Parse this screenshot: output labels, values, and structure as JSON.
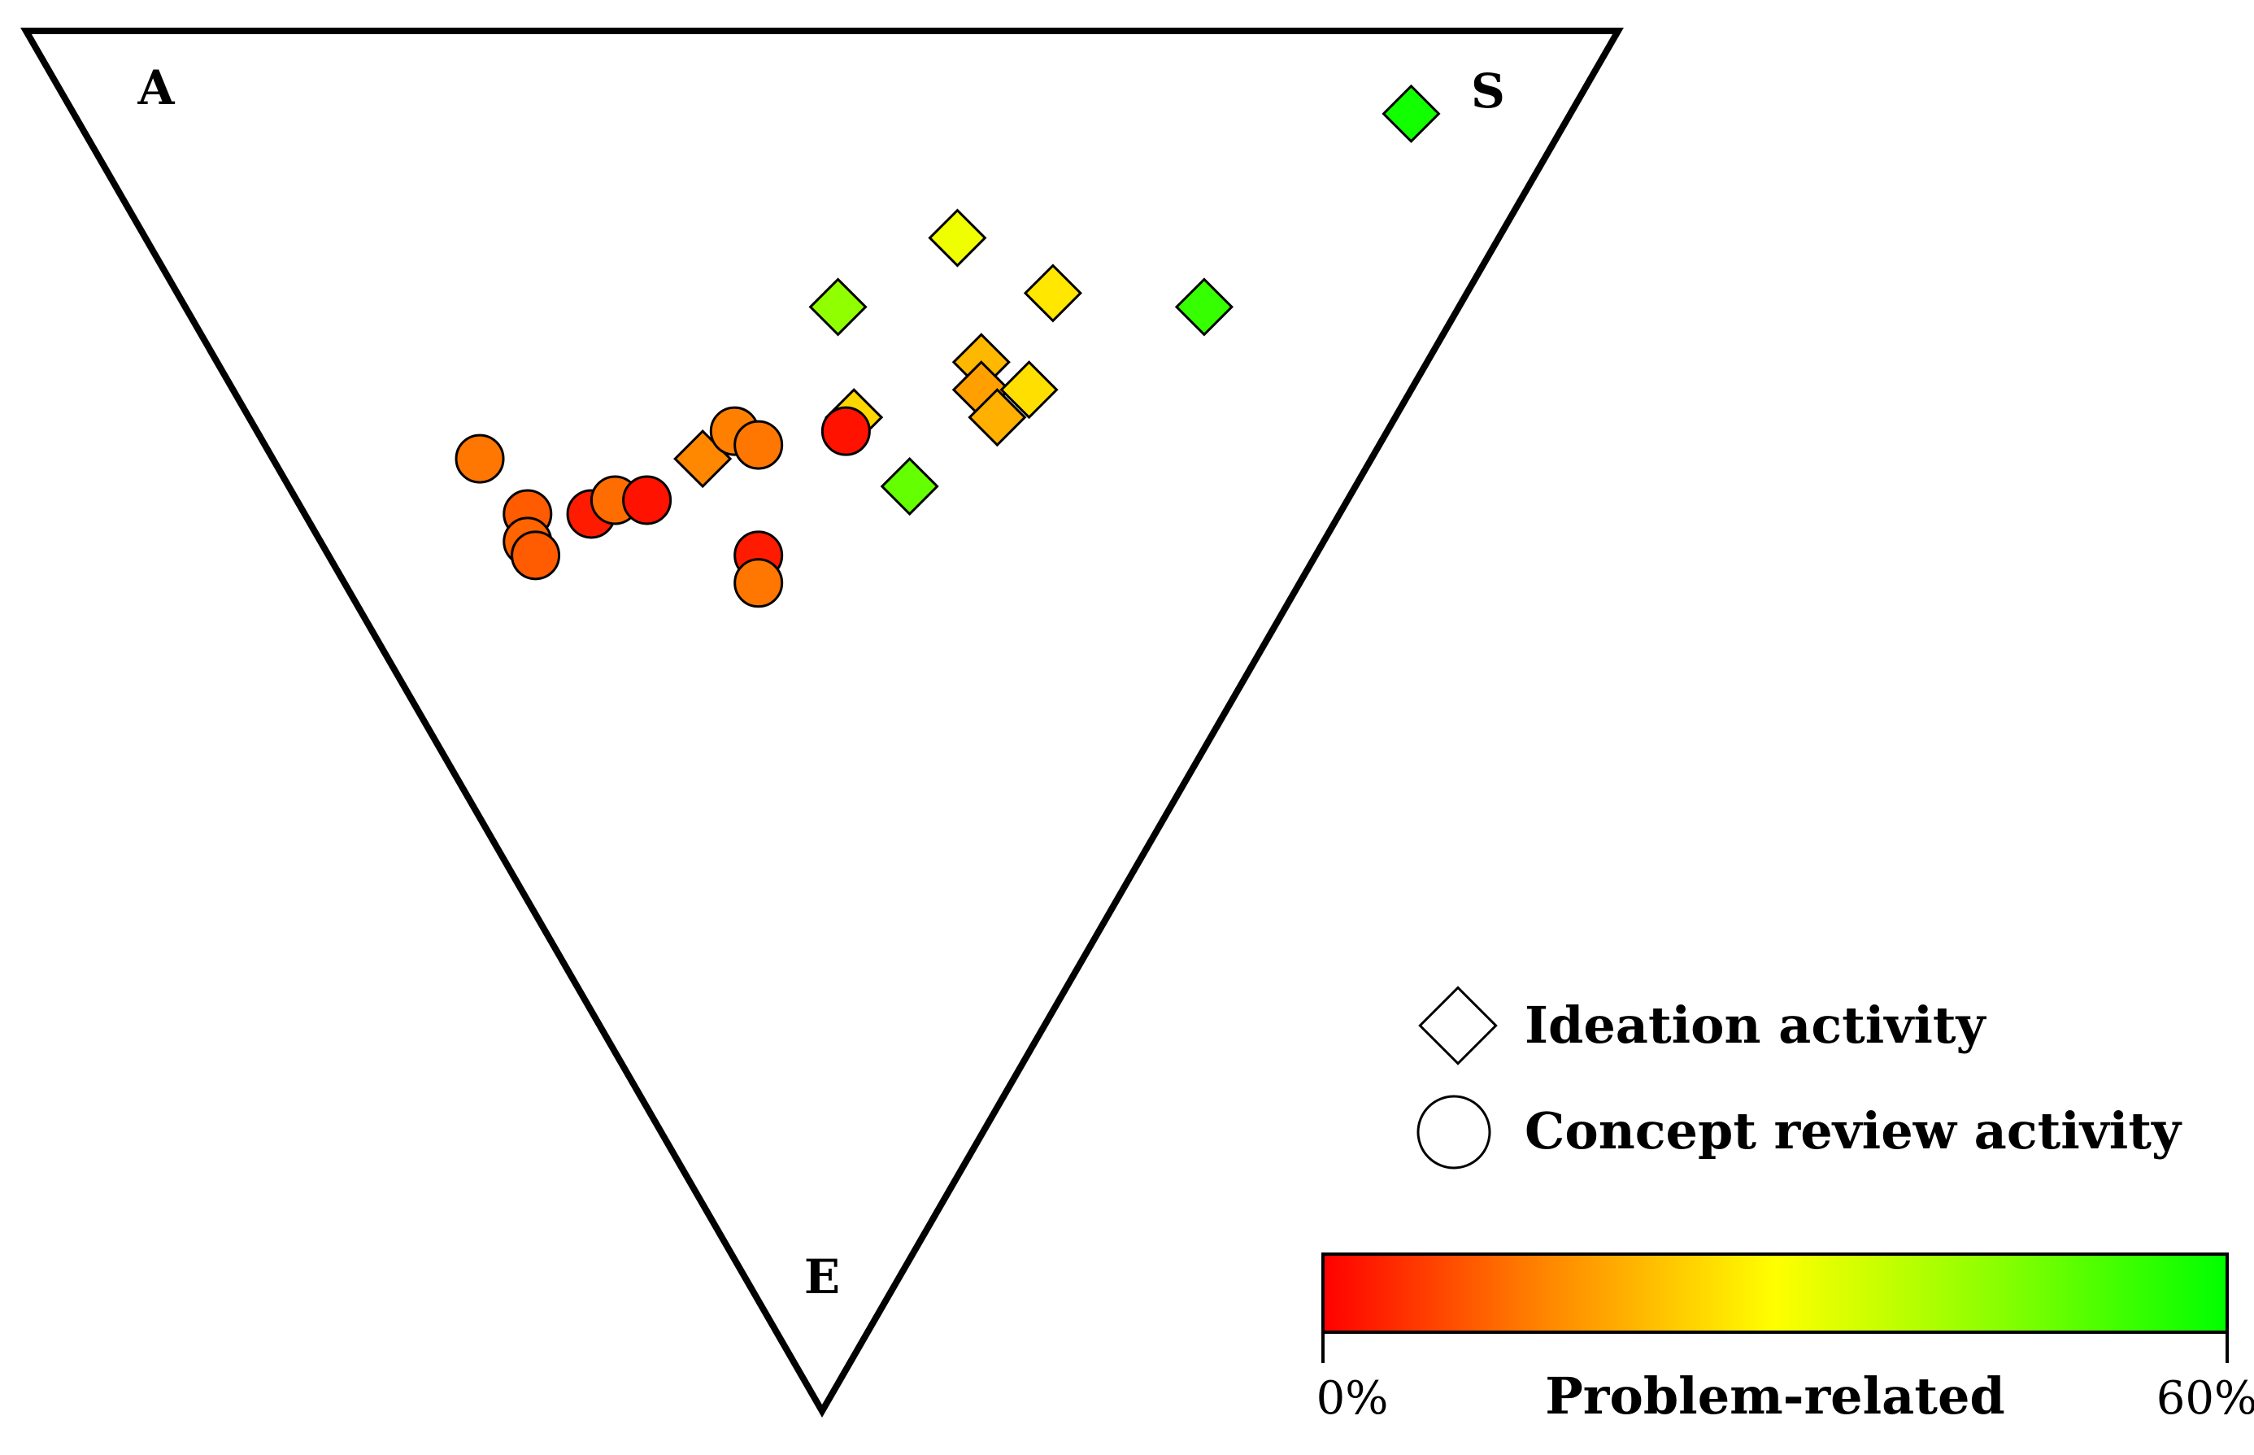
{
  "chart_data": {
    "type": "scatter",
    "subtype": "ternary",
    "vertices": {
      "top_left": "A",
      "top_right": "S",
      "bottom": "E"
    },
    "legend": [
      {
        "marker": "diamond",
        "label": "Ideation activity"
      },
      {
        "marker": "circle",
        "label": "Concept review activity"
      }
    ],
    "colorbar": {
      "title": "Problem-related",
      "min_label": "0%",
      "max_label": "60%",
      "range": [
        0,
        60
      ],
      "colors": [
        "#ff0000",
        "#ff8800",
        "#ffff00",
        "#88ff00",
        "#00ff00"
      ]
    },
    "series": [
      {
        "name": "Ideation activity",
        "marker": "diamond",
        "points": [
          {
            "A": 0.1,
            "S": 0.84,
            "E": 0.06,
            "problem_related": 58
          },
          {
            "A": 0.34,
            "S": 0.51,
            "E": 0.15,
            "problem_related": 32
          },
          {
            "A": 0.26,
            "S": 0.55,
            "E": 0.19,
            "problem_related": 27
          },
          {
            "A": 0.16,
            "S": 0.64,
            "E": 0.2,
            "problem_related": 54
          },
          {
            "A": 0.39,
            "S": 0.41,
            "E": 0.2,
            "problem_related": 44
          },
          {
            "A": 0.28,
            "S": 0.48,
            "E": 0.24,
            "problem_related": 21
          },
          {
            "A": 0.27,
            "S": 0.47,
            "E": 0.26,
            "problem_related": 18
          },
          {
            "A": 0.25,
            "S": 0.47,
            "E": 0.28,
            "problem_related": 20
          },
          {
            "A": 0.24,
            "S": 0.5,
            "E": 0.26,
            "problem_related": 26
          },
          {
            "A": 0.34,
            "S": 0.38,
            "E": 0.28,
            "problem_related": 25
          },
          {
            "A": 0.28,
            "S": 0.39,
            "E": 0.33,
            "problem_related": 49
          },
          {
            "A": 0.42,
            "S": 0.27,
            "E": 0.31,
            "problem_related": 15
          }
        ]
      },
      {
        "name": "Concept review activity",
        "marker": "circle",
        "points": [
          {
            "A": 0.56,
            "S": 0.13,
            "E": 0.31,
            "problem_related": 13
          },
          {
            "A": 0.51,
            "S": 0.14,
            "E": 0.35,
            "problem_related": 10
          },
          {
            "A": 0.5,
            "S": 0.13,
            "E": 0.37,
            "problem_related": 11
          },
          {
            "A": 0.49,
            "S": 0.13,
            "E": 0.38,
            "problem_related": 10
          },
          {
            "A": 0.47,
            "S": 0.18,
            "E": 0.35,
            "problem_related": 3
          },
          {
            "A": 0.46,
            "S": 0.2,
            "E": 0.34,
            "problem_related": 12
          },
          {
            "A": 0.44,
            "S": 0.22,
            "E": 0.34,
            "problem_related": 2
          },
          {
            "A": 0.41,
            "S": 0.3,
            "E": 0.29,
            "problem_related": 14
          },
          {
            "A": 0.39,
            "S": 0.31,
            "E": 0.3,
            "problem_related": 13
          },
          {
            "A": 0.35,
            "S": 0.27,
            "E": 0.38,
            "problem_related": 3
          },
          {
            "A": 0.34,
            "S": 0.26,
            "E": 0.4,
            "problem_related": 13
          },
          {
            "A": 0.34,
            "S": 0.37,
            "E": 0.29,
            "problem_related": 2
          }
        ]
      }
    ]
  }
}
